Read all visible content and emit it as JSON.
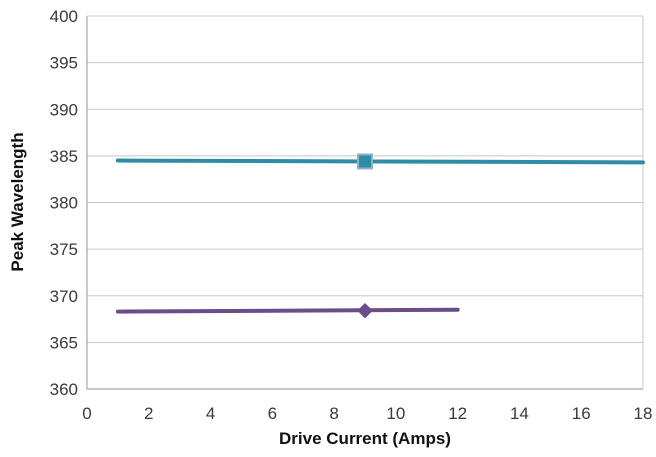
{
  "chart_data": {
    "type": "line",
    "title": "",
    "xlabel": "Drive Current (Amps)",
    "ylabel": "Peak Wavelength",
    "xlim": [
      0,
      18
    ],
    "ylim": [
      360,
      400
    ],
    "xticks": [
      "0",
      "2",
      "4",
      "6",
      "8",
      "10",
      "12",
      "14",
      "16",
      "18"
    ],
    "yticks": [
      "360",
      "365",
      "370",
      "375",
      "380",
      "385",
      "390",
      "395",
      "400"
    ],
    "grid": "horizontal",
    "legend": "none",
    "series": [
      {
        "color": "#2e8ca8",
        "marker": "square",
        "x": [
          1,
          18
        ],
        "y": [
          384.5,
          384.3
        ],
        "marker_point": [
          9,
          384.4
        ]
      },
      {
        "color": "#6b4d8a",
        "marker": "diamond",
        "x": [
          1,
          12
        ],
        "y": [
          368.3,
          368.5
        ],
        "marker_point": [
          9,
          368.4
        ]
      }
    ]
  }
}
